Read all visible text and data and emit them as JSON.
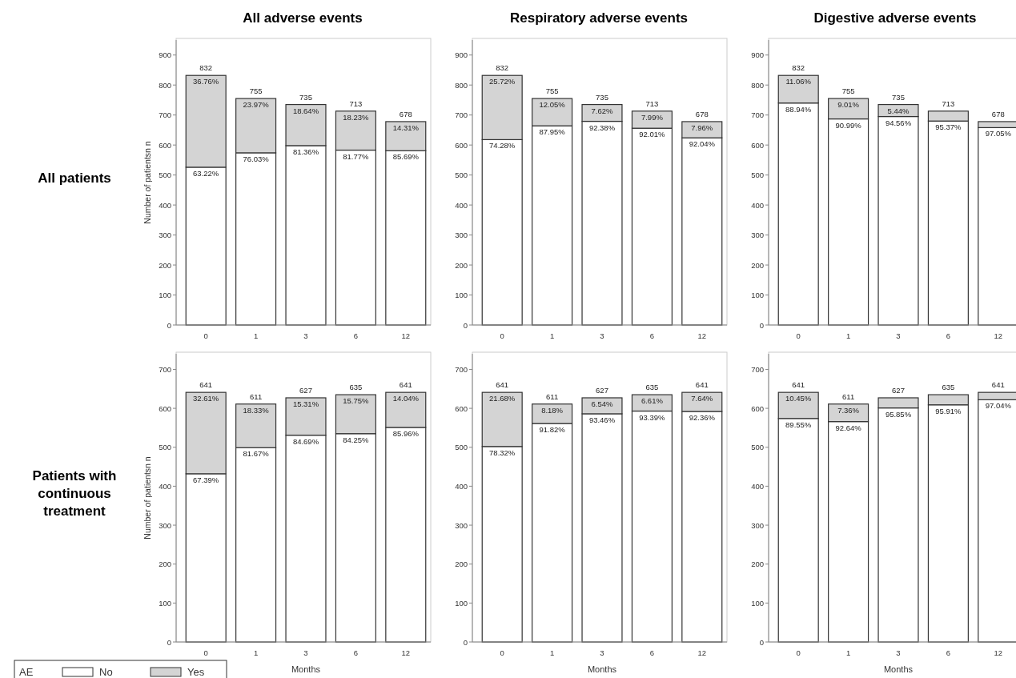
{
  "chart_data": [
    {
      "type": "bar",
      "stacked": true,
      "title": "All adverse events",
      "ylabel": "Number of patientsn n",
      "categories": [
        "0",
        "1",
        "3",
        "6",
        "12"
      ],
      "ylim": [
        0,
        950
      ],
      "yticks": [
        0,
        100,
        200,
        300,
        400,
        500,
        600,
        700,
        800,
        900
      ],
      "legend": false,
      "series": [
        {
          "color": "#ffffff",
          "values": [
            526,
            574,
            598,
            583,
            581
          ]
        },
        {
          "color": "#d4d4d4",
          "values": [
            306,
            181,
            137,
            130,
            97
          ]
        }
      ],
      "totals": [
        "832",
        "755",
        "735",
        "713",
        "678"
      ],
      "annotations": [
        "All patients",
        {
          "text": "63.22%",
          "x": "0",
          "y": 526
        },
        {
          "text": "76.03%",
          "x": "1",
          "y": 574
        },
        {
          "text": "81.36%",
          "x": "3",
          "y": 598
        },
        {
          "text": "81.77%",
          "x": "6",
          "y": 583
        },
        {
          "text": "85.69%",
          "x": "12",
          "y": 581
        },
        {
          "text": "36.76%",
          "x": "0",
          "y": 832
        },
        {
          "text": "23.97%",
          "x": "1",
          "y": 755
        },
        {
          "text": "18.64%",
          "x": "3",
          "y": 735
        },
        {
          "text": "18.23%",
          "x": "6",
          "y": 713
        },
        {
          "text": "14.31%",
          "x": "12",
          "y": 678
        }
      ]
    },
    {
      "type": "bar",
      "stacked": true,
      "title": "Respiratory adverse events",
      "categories": [
        "0",
        "1",
        "3",
        "6",
        "12"
      ],
      "ylim": [
        0,
        950
      ],
      "yticks": [
        0,
        100,
        200,
        300,
        400,
        500,
        600,
        700,
        800,
        900
      ],
      "legend": false,
      "series": [
        {
          "color": "#ffffff",
          "values": [
            618,
            664,
            679,
            656,
            624
          ]
        },
        {
          "color": "#d4d4d4",
          "values": [
            214,
            91,
            56,
            57,
            54
          ]
        }
      ],
      "totals": [
        "832",
        "755",
        "735",
        "713",
        "678"
      ],
      "annotations": [
        {
          "text": "74.28%",
          "x": "0",
          "y": 618
        },
        {
          "text": "87.95%",
          "x": "1",
          "y": 664
        },
        {
          "text": "92.38%",
          "x": "3",
          "y": 679
        },
        {
          "text": "92.01%",
          "x": "6",
          "y": 656
        },
        {
          "text": "92.04%",
          "x": "12",
          "y": 624
        },
        {
          "text": "25.72%",
          "x": "0",
          "y": 832
        },
        {
          "text": "12.05%",
          "x": "1",
          "y": 755
        },
        {
          "text": "7.62%",
          "x": "3",
          "y": 735
        },
        {
          "text": "7.99%",
          "x": "6",
          "y": 713
        },
        {
          "text": "7.96%",
          "x": "12",
          "y": 678
        }
      ]
    },
    {
      "type": "bar",
      "stacked": true,
      "title": "Digestive adverse events",
      "categories": [
        "0",
        "1",
        "3",
        "6",
        "12"
      ],
      "ylim": [
        0,
        950
      ],
      "yticks": [
        0,
        100,
        200,
        300,
        400,
        500,
        600,
        700,
        800,
        900
      ],
      "legend": false,
      "series": [
        {
          "color": "#ffffff",
          "values": [
            740,
            687,
            695,
            680,
            658
          ]
        },
        {
          "color": "#d4d4d4",
          "values": [
            92,
            68,
            40,
            33,
            20
          ]
        }
      ],
      "totals": [
        "832",
        "755",
        "735",
        "713",
        "678"
      ],
      "annotations": [
        {
          "text": "88.94%",
          "x": "0",
          "y": 740
        },
        {
          "text": "90.99%",
          "x": "1",
          "y": 687
        },
        {
          "text": "94.56%",
          "x": "3",
          "y": 695
        },
        {
          "text": "95.37%",
          "x": "6",
          "y": 680
        },
        {
          "text": "97.05%",
          "x": "12",
          "y": 658
        },
        {
          "text": "11.06%",
          "x": "0",
          "y": 832
        },
        {
          "text": "9.01%",
          "x": "1",
          "y": 755
        },
        {
          "text": "5.44%",
          "x": "3",
          "y": 735
        }
      ]
    },
    {
      "type": "bar",
      "stacked": true,
      "xlabel": "Months",
      "ylabel": "Number of patientsn n",
      "categories": [
        "0",
        "1",
        "3",
        "6",
        "12"
      ],
      "ylim": [
        0,
        740
      ],
      "yticks": [
        0,
        100,
        200,
        300,
        400,
        500,
        600,
        700
      ],
      "legend": "bottom left",
      "legend_title": "AE",
      "series": [
        {
          "name": "No",
          "color": "#ffffff",
          "values": [
            432,
            499,
            531,
            535,
            551
          ]
        },
        {
          "name": "Yes",
          "color": "#d4d4d4",
          "values": [
            209,
            112,
            96,
            100,
            90
          ]
        }
      ],
      "totals": [
        "641",
        "611",
        "627",
        "635",
        "641"
      ],
      "annotations": [
        "Patients with continuous treatment",
        {
          "text": "67.39%",
          "x": "0",
          "y": 432
        },
        {
          "text": "81.67%",
          "x": "1",
          "y": 499
        },
        {
          "text": "84.69%",
          "x": "3",
          "y": 531
        },
        {
          "text": "84.25%",
          "x": "6",
          "y": 535
        },
        {
          "text": "85.96%",
          "x": "12",
          "y": 551
        },
        {
          "text": "32.61%",
          "x": "0",
          "y": 641
        },
        {
          "text": "18.33%",
          "x": "1",
          "y": 611
        },
        {
          "text": "15.31%",
          "x": "3",
          "y": 627
        },
        {
          "text": "15.75%",
          "x": "6",
          "y": 635
        },
        {
          "text": "14.04%",
          "x": "12",
          "y": 641
        }
      ]
    },
    {
      "type": "bar",
      "stacked": true,
      "xlabel": "Months",
      "categories": [
        "0",
        "1",
        "3",
        "6",
        "12"
      ],
      "ylim": [
        0,
        740
      ],
      "yticks": [
        0,
        100,
        200,
        300,
        400,
        500,
        600,
        700
      ],
      "legend": false,
      "series": [
        {
          "color": "#ffffff",
          "values": [
            502,
            561,
            586,
            593,
            592
          ]
        },
        {
          "color": "#d4d4d4",
          "values": [
            139,
            50,
            41,
            42,
            49
          ]
        }
      ],
      "totals": [
        "641",
        "611",
        "627",
        "635",
        "641"
      ],
      "annotations": [
        {
          "text": "78.32%",
          "x": "0",
          "y": 502
        },
        {
          "text": "91.82%",
          "x": "1",
          "y": 561
        },
        {
          "text": "93.46%",
          "x": "3",
          "y": 586
        },
        {
          "text": "93.39%",
          "x": "6",
          "y": 593
        },
        {
          "text": "92.36%",
          "x": "12",
          "y": 592
        },
        {
          "text": "21.68%",
          "x": "0",
          "y": 641
        },
        {
          "text": "8.18%",
          "x": "1",
          "y": 611
        },
        {
          "text": "6.54%",
          "x": "3",
          "y": 627
        },
        {
          "text": "6.61%",
          "x": "6",
          "y": 635
        },
        {
          "text": "7.64%",
          "x": "12",
          "y": 641
        }
      ]
    },
    {
      "type": "bar",
      "stacked": true,
      "xlabel": "Months",
      "categories": [
        "0",
        "1",
        "3",
        "6",
        "12"
      ],
      "ylim": [
        0,
        740
      ],
      "yticks": [
        0,
        100,
        200,
        300,
        400,
        500,
        600,
        700
      ],
      "legend": false,
      "series": [
        {
          "color": "#ffffff",
          "values": [
            574,
            566,
            601,
            609,
            622
          ]
        },
        {
          "color": "#d4d4d4",
          "values": [
            67,
            45,
            26,
            26,
            19
          ]
        }
      ],
      "totals": [
        "641",
        "611",
        "627",
        "635",
        "641"
      ],
      "annotations": [
        {
          "text": "89.55%",
          "x": "0",
          "y": 574
        },
        {
          "text": "92.64%",
          "x": "1",
          "y": 566
        },
        {
          "text": "95.85%",
          "x": "3",
          "y": 601
        },
        {
          "text": "95.91%",
          "x": "6",
          "y": 609
        },
        {
          "text": "97.04%",
          "x": "12",
          "y": 622
        },
        {
          "text": "10.45%",
          "x": "0",
          "y": 641
        },
        {
          "text": "7.36%",
          "x": "1",
          "y": 611
        }
      ]
    }
  ]
}
